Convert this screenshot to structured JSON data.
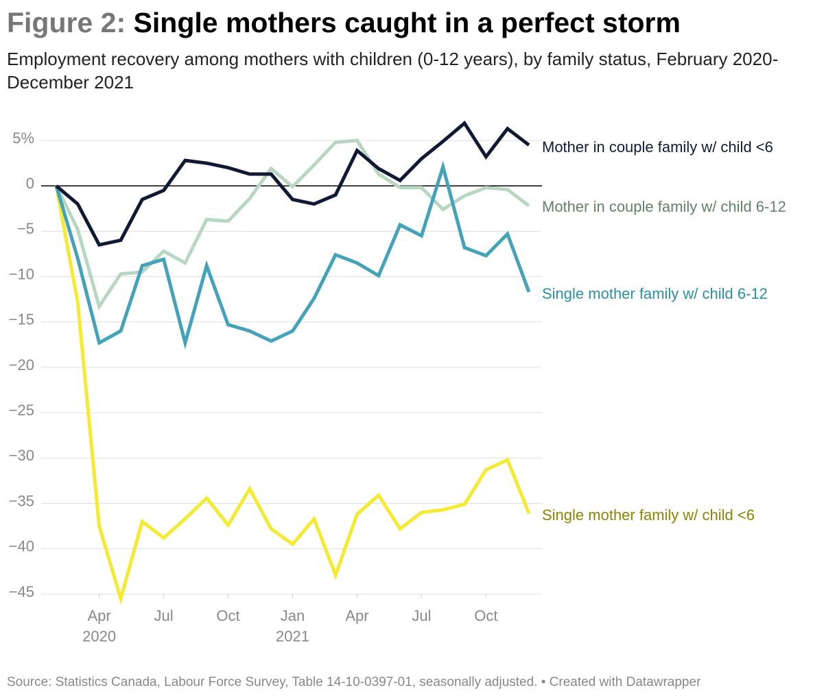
{
  "figure_label": "Figure 2:",
  "chart_data": {
    "type": "line",
    "title": "Single mothers caught in a perfect storm",
    "subtitle": "Employment recovery among mothers with children (0-12 years), by family status, February 2020-December 2021",
    "source": "Source: Statistics Canada, Labour Force Survey, Table 14-10-0397-01, seasonally adjusted. • Created with Datawrapper",
    "x": [
      "2020-02",
      "2020-03",
      "2020-04",
      "2020-05",
      "2020-06",
      "2020-07",
      "2020-08",
      "2020-09",
      "2020-10",
      "2020-11",
      "2020-12",
      "2021-01",
      "2021-02",
      "2021-03",
      "2021-04",
      "2021-05",
      "2021-06",
      "2021-07",
      "2021-08",
      "2021-09",
      "2021-10",
      "2021-11",
      "2021-12"
    ],
    "xticks": [
      {
        "value": "2020-04",
        "label": [
          "Apr",
          "2020"
        ]
      },
      {
        "value": "2020-07",
        "label": [
          "Jul"
        ]
      },
      {
        "value": "2020-10",
        "label": [
          "Oct"
        ]
      },
      {
        "value": "2021-01",
        "label": [
          "Jan",
          "2021"
        ]
      },
      {
        "value": "2021-04",
        "label": [
          "Apr"
        ]
      },
      {
        "value": "2021-07",
        "label": [
          "Jul"
        ]
      },
      {
        "value": "2021-10",
        "label": [
          "Oct"
        ]
      }
    ],
    "ylim": [
      -45,
      5
    ],
    "yticks": [
      {
        "value": 5,
        "label": "5%"
      },
      0,
      {
        "value": -5,
        "label": "−5"
      },
      {
        "value": -10,
        "label": "−10"
      },
      {
        "value": -15,
        "label": "−15"
      },
      {
        "value": -20,
        "label": "−20"
      },
      {
        "value": -25,
        "label": "−25"
      },
      {
        "value": -30,
        "label": "−30"
      },
      {
        "value": -35,
        "label": "−35"
      },
      {
        "value": -40,
        "label": "−40"
      },
      {
        "value": -45,
        "label": "−45"
      }
    ],
    "grid": true,
    "series": [
      {
        "name": "Single mother family w/ child <6",
        "color": "#f5ea30",
        "label_color": "#8a8500",
        "values": [
          0,
          -12.8,
          -37.5,
          -45.5,
          -37,
          -38.8,
          -36.7,
          -34.4,
          -37.4,
          -33.4,
          -37.8,
          -39.5,
          -36.7,
          -42.9,
          -36.2,
          -34.1,
          -37.8,
          -36,
          -35.7,
          -35.1,
          -31.3,
          -30.2,
          -36.1
        ]
      },
      {
        "name": "Mother in couple family w/ child 6-12",
        "color": "#b7d7c3",
        "label_color": "#62806c",
        "values": [
          0,
          -4.8,
          -13.3,
          -9.7,
          -9.5,
          -7.2,
          -8.5,
          -3.7,
          -3.9,
          -1.4,
          1.9,
          -0.1,
          2.3,
          4.8,
          5.0,
          1.3,
          -0.2,
          -0.2,
          -2.6,
          -1.1,
          -0.2,
          -0.4,
          -2.2
        ]
      },
      {
        "name": "Single mother family w/ child 6-12",
        "color": "#44a2ba",
        "label_color": "#2a8fa5",
        "values": [
          0,
          -8,
          -17.3,
          -16,
          -8.8,
          -8.1,
          -17.3,
          -8.8,
          -15.3,
          -16,
          -17.1,
          -16,
          -12.4,
          -7.6,
          -8.5,
          -9.9,
          -4.3,
          -5.5,
          2.1,
          -6.8,
          -7.7,
          -5.3,
          -11.7
        ]
      },
      {
        "name": "Mother in couple family w/ child <6",
        "color": "#111a35",
        "label_color": "#111a35",
        "values": [
          0,
          -2,
          -6.5,
          -6,
          -1.5,
          -0.5,
          2.8,
          2.5,
          2,
          1.3,
          1.3,
          -1.5,
          -2,
          -1,
          3.9,
          1.9,
          0.6,
          3.0,
          4.9,
          6.9,
          3.2,
          6.3,
          4.5
        ]
      }
    ]
  }
}
